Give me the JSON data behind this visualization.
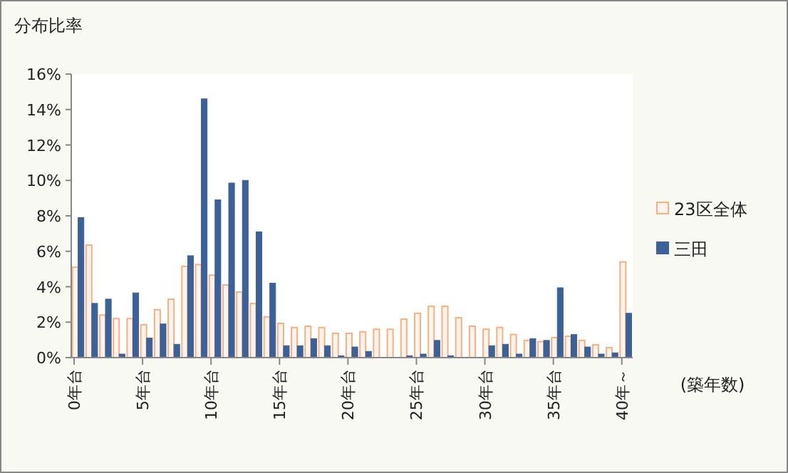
{
  "chart_data": {
    "type": "bar",
    "ylabel": "分布比率",
    "xlabel": "(築年数)",
    "categories": [
      "0年台",
      null,
      null,
      null,
      null,
      "5年台",
      null,
      null,
      null,
      null,
      "10年台",
      null,
      null,
      null,
      null,
      "15年台",
      null,
      null,
      null,
      null,
      "20年台",
      null,
      null,
      null,
      null,
      "25年台",
      null,
      null,
      null,
      null,
      "30年台",
      null,
      null,
      null,
      null,
      "35年台",
      null,
      null,
      null,
      null,
      "40年～"
    ],
    "series": [
      {
        "name": "23区全体",
        "color": "#f9b07f",
        "values": [
          5.1,
          6.35,
          2.4,
          2.2,
          2.2,
          1.85,
          2.7,
          3.3,
          5.15,
          5.25,
          4.65,
          4.1,
          3.7,
          3.05,
          2.3,
          1.93,
          1.7,
          1.77,
          1.7,
          1.37,
          1.37,
          1.45,
          1.6,
          1.6,
          2.17,
          2.5,
          2.9,
          2.9,
          2.25,
          1.77,
          1.6,
          1.7,
          1.3,
          0.97,
          0.9,
          1.13,
          1.2,
          0.97,
          0.72,
          0.56,
          5.4
        ]
      },
      {
        "name": "三田",
        "color": "#3b6198",
        "values": [
          7.9,
          3.06,
          3.3,
          0.2,
          3.65,
          1.1,
          1.9,
          0.75,
          5.75,
          14.6,
          8.9,
          9.85,
          10.0,
          7.1,
          4.2,
          0.67,
          0.67,
          1.07,
          0.67,
          0.1,
          0.6,
          0.35,
          null,
          null,
          0.1,
          0.2,
          0.97,
          0.1,
          null,
          null,
          0.67,
          0.75,
          0.2,
          1.07,
          0.97,
          3.94,
          1.3,
          0.6,
          0.2,
          0.27,
          2.5
        ]
      }
    ],
    "ylim": [
      0,
      16
    ],
    "yticks": [
      {
        "value": 0,
        "label": "0%"
      },
      {
        "value": 2,
        "label": "2%"
      },
      {
        "value": 4,
        "label": "4%"
      },
      {
        "value": 6,
        "label": "6%"
      },
      {
        "value": 8,
        "label": "8%"
      },
      {
        "value": 10,
        "label": "10%"
      },
      {
        "value": 12,
        "label": "12%"
      },
      {
        "value": 14,
        "label": "14%"
      },
      {
        "value": 16,
        "label": "16%"
      }
    ],
    "legend": "right"
  }
}
